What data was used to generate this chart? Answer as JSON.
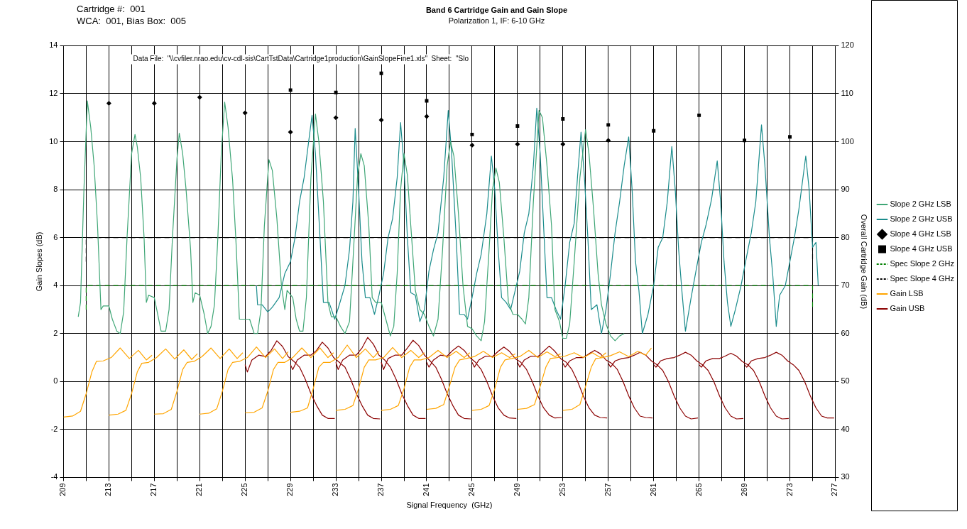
{
  "chart_data": {
    "type": "line",
    "title": "Band 6 Cartridge Gain and Gain Slope",
    "subtitle": "Polarization 1, IF: 6-10 GHz",
    "xlabel": "Signal Frequency  (GHz)",
    "ylabel": "Gain Slopes (dB)",
    "y2label": "Overall Cartridge Gain (dB)",
    "annotations": [
      "Cartridge #:  001",
      "WCA:  001, Bias Box:  005",
      "Data File:  \"\\\\cvfiler.nrao.edu\\cv-cdl-sis\\CartTstData\\Cartridge1production\\GainSlopeFine1.xls\"  Sheet:  \"Slo"
    ],
    "xlim": [
      209,
      277
    ],
    "xticks": [
      209,
      {
        "value": 211,
        "label": null
      },
      213,
      {
        "value": 215,
        "label": null
      },
      217,
      {
        "value": 219,
        "label": null
      },
      221,
      {
        "value": 223,
        "label": null
      },
      225,
      {
        "value": 227,
        "label": null
      },
      229,
      {
        "value": 231,
        "label": null
      },
      233,
      {
        "value": 235,
        "label": null
      },
      237,
      {
        "value": 239,
        "label": null
      },
      241,
      {
        "value": 243,
        "label": null
      },
      245,
      {
        "value": 247,
        "label": null
      },
      249,
      {
        "value": 251,
        "label": null
      },
      253,
      {
        "value": 255,
        "label": null
      },
      257,
      {
        "value": 259,
        "label": null
      },
      261,
      {
        "value": 263,
        "label": null
      },
      265,
      {
        "value": 267,
        "label": null
      },
      269,
      {
        "value": 271,
        "label": null
      },
      273,
      {
        "value": 275,
        "label": null
      },
      277
    ],
    "ylim": [
      -4,
      14
    ],
    "yticks": [
      -4,
      -2,
      0,
      2,
      4,
      6,
      8,
      10,
      12,
      14
    ],
    "y2lim": [
      30,
      120
    ],
    "y2ticks": [
      30,
      40,
      50,
      60,
      70,
      80,
      90,
      100,
      110,
      120
    ],
    "grid": true,
    "legend": "right",
    "series": [
      {
        "name": "Slope 2 GHz LSB",
        "type": "line",
        "color": "#3fa676",
        "x": [
          210.3,
          210.5,
          210.8,
          211.1,
          211.4,
          211.7,
          212.0,
          212.3,
          212.5,
          213.0,
          213.3,
          213.7,
          214.0,
          214.3,
          214.6,
          215.0,
          215.3,
          215.5,
          215.8,
          216.1,
          216.3,
          216.5,
          217.0,
          217.3,
          217.6,
          218.0,
          218.3,
          218.6,
          219.0,
          219.2,
          219.5,
          219.8,
          220.2,
          220.4,
          220.6,
          221.0,
          221.4,
          221.7,
          222.0,
          222.3,
          222.6,
          222.9,
          223.2,
          223.5,
          223.9,
          224.2,
          224.5,
          225.0,
          225.4,
          225.8,
          226.1,
          226.4,
          226.7,
          227.1,
          227.4,
          227.8,
          228.2,
          228.5,
          228.7,
          229.2,
          229.5,
          229.8,
          230.1,
          230.4,
          230.8,
          231.2,
          231.5,
          231.9,
          232.3,
          232.6,
          233.0,
          233.4,
          233.8,
          234.2,
          234.5,
          234.9,
          235.2,
          235.5,
          235.9,
          236.2,
          236.5,
          237.0,
          237.4,
          237.8,
          238.1,
          238.4,
          238.7,
          239.0,
          239.3,
          239.6,
          240.0,
          240.4,
          240.8,
          241.2,
          241.6,
          242.0,
          242.4,
          242.8,
          243.1,
          243.4,
          243.8,
          244.2,
          244.6,
          245.0,
          245.4,
          245.8,
          246.1,
          246.5,
          246.8,
          247.1,
          247.4,
          247.8,
          248.2,
          248.6,
          249.0,
          249.4,
          249.7,
          250.0,
          250.4,
          250.9,
          251.2,
          251.6,
          252.0,
          252.3,
          252.7,
          253.0,
          253.3,
          253.6,
          254.0,
          254.5,
          255.0,
          255.3,
          255.7,
          256.1,
          256.4,
          256.8,
          257.2,
          257.6,
          258.0,
          258.4
        ],
        "values": [
          2.7,
          3.3,
          8.0,
          11.7,
          10.6,
          9.0,
          6.5,
          3.0,
          3.15,
          3.15,
          2.6,
          2.1,
          2.0,
          2.9,
          6.0,
          9.5,
          10.3,
          9.8,
          8.5,
          6.0,
          3.3,
          3.6,
          3.5,
          2.8,
          2.1,
          2.1,
          3.0,
          6.0,
          9.3,
          10.35,
          9.5,
          8.0,
          5.5,
          3.3,
          3.7,
          3.6,
          2.8,
          2.0,
          2.3,
          3.2,
          6.0,
          9.5,
          11.65,
          10.6,
          8.4,
          5.8,
          2.6,
          2.6,
          2.6,
          2.0,
          2.0,
          3.0,
          6.5,
          9.25,
          8.8,
          6.8,
          4.0,
          3.0,
          3.8,
          3.5,
          2.6,
          2.1,
          2.1,
          3.5,
          8.5,
          11.15,
          10.0,
          7.5,
          3.3,
          2.7,
          2.7,
          2.3,
          2.0,
          2.5,
          5.0,
          8.5,
          9.5,
          9.0,
          6.5,
          3.5,
          3.3,
          3.3,
          2.6,
          1.9,
          2.3,
          4.5,
          8.0,
          9.5,
          8.6,
          6.5,
          3.8,
          3.0,
          2.8,
          2.3,
          1.9,
          2.6,
          5.5,
          9.0,
          10.0,
          9.4,
          7.0,
          4.0,
          2.3,
          2.2,
          1.9,
          1.7,
          2.5,
          5.5,
          8.0,
          8.9,
          8.3,
          6.0,
          3.3,
          2.8,
          2.8,
          2.6,
          2.4,
          3.5,
          7.5,
          11.3,
          11.0,
          9.0,
          6.5,
          3.0,
          2.5,
          1.8,
          1.8,
          2.4,
          5.0,
          8.5,
          10.5,
          9.5,
          7.2,
          4.5,
          3.2,
          2.4,
          1.9,
          1.7,
          1.9,
          2.0
        ]
      },
      {
        "name": "Slope 2 GHz USB",
        "type": "line",
        "color": "#1b8c8c",
        "x": [
          226.0,
          226.1,
          226.5,
          227.0,
          227.4,
          228.0,
          228.5,
          229.0,
          229.4,
          229.8,
          230.2,
          230.6,
          230.9,
          231.2,
          231.6,
          231.9,
          232.4,
          232.9,
          233.3,
          233.8,
          234.2,
          234.5,
          234.7,
          235.0,
          235.3,
          235.6,
          236.0,
          236.4,
          236.8,
          237.2,
          237.6,
          238.0,
          238.4,
          238.7,
          239.0,
          239.3,
          239.6,
          240.0,
          240.4,
          240.8,
          241.2,
          241.6,
          242.0,
          242.5,
          242.9,
          243.2,
          243.6,
          243.9,
          244.3,
          244.6,
          245.0,
          245.4,
          245.8,
          246.3,
          246.7,
          247.0,
          247.3,
          247.6,
          248.0,
          248.4,
          248.8,
          249.2,
          249.6,
          250.0,
          250.4,
          250.7,
          251.0,
          251.3,
          251.6,
          252.0,
          252.4,
          252.8,
          253.2,
          253.6,
          254.0,
          254.3,
          254.6,
          254.9,
          255.2,
          255.5,
          256.0,
          256.4,
          256.8,
          257.2,
          257.6,
          258.0,
          258.4,
          258.8,
          259.1,
          259.4,
          259.7,
          260.0,
          260.5,
          261.0,
          261.4,
          261.8,
          262.2,
          262.6,
          262.9,
          263.2,
          263.5,
          263.8,
          264.3,
          264.8,
          265.2,
          265.6,
          266.1,
          266.6,
          266.9,
          267.2,
          267.5,
          267.8,
          268.2,
          268.7,
          269.1,
          269.6,
          270.0,
          270.5,
          270.8,
          271.2,
          271.5,
          271.8,
          272.1,
          272.6,
          273.0,
          273.4,
          273.8,
          274.4,
          274.7,
          275.0,
          275.3,
          275.5
        ],
        "values": [
          4.0,
          3.2,
          3.2,
          2.9,
          3.1,
          3.5,
          4.5,
          5.0,
          6.0,
          7.5,
          8.5,
          10.0,
          11.1,
          9.5,
          6.0,
          3.3,
          3.3,
          2.6,
          3.2,
          4.0,
          5.5,
          7.5,
          10.55,
          8.0,
          5.0,
          3.5,
          3.5,
          2.8,
          3.6,
          4.5,
          6.0,
          6.8,
          8.5,
          10.8,
          9.0,
          6.0,
          3.7,
          3.6,
          2.5,
          3.0,
          4.6,
          5.5,
          6.2,
          8.5,
          11.3,
          9.5,
          6.0,
          2.8,
          2.8,
          2.6,
          3.5,
          4.5,
          5.3,
          7.0,
          9.4,
          8.0,
          5.5,
          3.5,
          3.3,
          3.0,
          3.8,
          4.6,
          6.2,
          7.0,
          9.0,
          11.4,
          9.5,
          6.5,
          3.5,
          3.5,
          3.0,
          2.6,
          4.0,
          5.8,
          6.6,
          8.6,
          10.4,
          8.5,
          6.0,
          3.0,
          3.2,
          2.0,
          3.0,
          4.5,
          6.2,
          7.5,
          9.0,
          10.2,
          8.0,
          5.0,
          3.8,
          2.0,
          2.8,
          4.0,
          5.6,
          6.0,
          7.5,
          9.8,
          8.0,
          5.5,
          3.7,
          2.1,
          3.5,
          4.8,
          5.8,
          6.5,
          7.6,
          9.2,
          7.5,
          5.0,
          3.3,
          2.3,
          3.0,
          4.0,
          5.0,
          6.2,
          7.5,
          10.7,
          9.0,
          6.0,
          4.4,
          2.3,
          3.6,
          4.0,
          5.0,
          6.0,
          7.2,
          9.4,
          8.0,
          5.6,
          5.8,
          4.0
        ]
      },
      {
        "name": "Slope 4 GHz LSB",
        "type": "scatter",
        "marker": "diamond",
        "color": "#000000",
        "x": [
          213,
          217,
          221,
          225,
          229,
          233,
          237,
          241,
          245,
          249,
          253,
          257
        ],
        "values": [
          11.6,
          11.6,
          11.85,
          11.2,
          10.4,
          11.0,
          10.9,
          11.05,
          9.85,
          9.9,
          9.9,
          10.05
        ]
      },
      {
        "name": "Slope 4 GHz USB",
        "type": "scatter",
        "marker": "square",
        "color": "#000000",
        "x": [
          229,
          233,
          237,
          241,
          245,
          249,
          253,
          257,
          261,
          265,
          269,
          273
        ],
        "values": [
          12.15,
          12.05,
          12.85,
          11.7,
          10.3,
          10.65,
          10.95,
          10.7,
          10.45,
          11.1,
          10.05,
          10.2
        ]
      },
      {
        "name": "Spec Slope 2 GHz",
        "type": "line",
        "line_style": "dashed",
        "color": "#008000",
        "x": [
          211,
          211,
          275,
          275
        ],
        "values": [
          3,
          4,
          4,
          3
        ]
      },
      {
        "name": "Spec Slope 4 GHz",
        "type": "line",
        "line_style": "dashed",
        "color": "#000000",
        "x": [
          211,
          211,
          275,
          275
        ],
        "values": [
          5,
          6,
          6,
          5
        ]
      },
      {
        "name": "Gain LSB",
        "type": "line",
        "axis": "y2",
        "color": "#ffa500",
        "x": [
          209,
          209.8,
          210.5,
          211,
          211.5,
          211.9,
          212.5,
          213.2,
          214,
          214.8,
          215.6,
          216.3,
          216.8,
          null,
          213,
          213.8,
          214.5,
          215,
          215.5,
          215.9,
          216.5,
          217.2,
          218,
          218.8,
          219.6,
          220.3,
          220.8,
          null,
          217,
          217.8,
          218.5,
          219,
          219.5,
          219.9,
          220.5,
          221.2,
          222,
          222.8,
          223.6,
          224.3,
          224.8,
          null,
          221,
          221.8,
          222.5,
          223,
          223.5,
          223.9,
          224.5,
          225.2,
          226,
          226.8,
          227.6,
          228.3,
          228.8,
          null,
          225,
          225.8,
          226.5,
          227,
          227.5,
          227.9,
          228.5,
          229.2,
          230,
          230.8,
          231.6,
          232.3,
          232.8,
          null,
          229,
          229.8,
          230.5,
          231,
          231.5,
          231.9,
          232.5,
          233.2,
          234,
          234.8,
          235.6,
          236.3,
          236.8,
          null,
          233,
          233.8,
          234.5,
          235,
          235.5,
          235.9,
          236.5,
          237.2,
          238,
          238.8,
          239.6,
          240.3,
          240.8,
          null,
          237,
          237.8,
          238.5,
          239,
          239.5,
          239.9,
          240.5,
          241.2,
          242,
          242.8,
          243.6,
          244.3,
          244.8,
          null,
          241,
          241.8,
          242.5,
          243,
          243.5,
          243.9,
          244.5,
          245.2,
          246,
          246.8,
          247.6,
          248.3,
          248.8,
          null,
          245,
          245.8,
          246.5,
          247,
          247.5,
          247.9,
          248.5,
          249.2,
          250,
          250.8,
          251.6,
          252.3,
          252.8,
          null,
          249,
          249.8,
          250.5,
          251,
          251.5,
          251.9,
          252.5,
          253.2,
          254,
          254.8,
          255.6,
          256.3,
          256.8,
          null,
          253,
          253.8,
          254.5,
          255,
          255.5,
          255.9,
          256.5,
          257.2,
          258,
          258.8,
          259.6,
          260.3,
          260.8
        ],
        "values": [
          42.6,
          42.8,
          43.8,
          47.5,
          52.0,
          54.2,
          54.3,
          55.0,
          57.0,
          54.8,
          56.5,
          54.5,
          55.5,
          null,
          43.0,
          43.2,
          44.0,
          47.5,
          52.0,
          53.8,
          54.0,
          55.0,
          56.8,
          54.7,
          56.6,
          54.6,
          55.8,
          null,
          43.2,
          43.3,
          44.2,
          48.0,
          52.5,
          54.0,
          54.2,
          55.2,
          57.0,
          54.8,
          56.8,
          54.8,
          56.0,
          null,
          43.2,
          43.4,
          44.3,
          48.0,
          52.5,
          54.0,
          54.2,
          55.0,
          57.2,
          55.0,
          56.8,
          54.8,
          56.2,
          null,
          43.5,
          43.6,
          44.5,
          48.0,
          52.5,
          54.0,
          54.0,
          55.0,
          57.0,
          55.0,
          57.0,
          55.0,
          56.0,
          null,
          43.6,
          43.8,
          44.5,
          48.5,
          53.0,
          54.0,
          54.0,
          55.0,
          57.6,
          55.0,
          56.8,
          55.0,
          56.3,
          null,
          44.0,
          44.2,
          45.0,
          48.5,
          53.0,
          54.5,
          54.5,
          55.0,
          57.1,
          55.0,
          56.5,
          55.0,
          56.0,
          null,
          44.0,
          44.2,
          45.0,
          48.5,
          53.0,
          54.5,
          54.5,
          55.0,
          56.5,
          55.0,
          56.3,
          55.0,
          56.0,
          null,
          44.2,
          44.4,
          45.2,
          49.0,
          53.0,
          54.5,
          54.8,
          55.2,
          56.3,
          55.0,
          56.0,
          55.0,
          55.8,
          null,
          44.0,
          44.2,
          45.0,
          48.5,
          53.0,
          54.5,
          54.8,
          55.2,
          56.5,
          55.0,
          56.2,
          55.2,
          55.8,
          null,
          44.2,
          44.4,
          45.2,
          49.0,
          53.0,
          54.8,
          55.0,
          55.3,
          56.0,
          55.0,
          56.0,
          55.0,
          56.0,
          null,
          44.0,
          44.2,
          45.2,
          49.0,
          53.0,
          54.8,
          55.0,
          55.4,
          56.2,
          55.2,
          56.3,
          55.5,
          57.0
        ]
      },
      {
        "name": "Gain USB",
        "type": "line",
        "axis": "y2",
        "color": "#8b0000",
        "x": [
          225,
          225.2,
          225.6,
          226.2,
          226.8,
          227.3,
          227.8,
          228.3,
          228.8,
          229.3,
          229.8,
          230.3,
          230.8,
          231.3,
          231.8,
          232.3,
          232.9,
          null,
          229,
          229.2,
          229.6,
          230.2,
          230.8,
          231.3,
          231.8,
          232.3,
          232.8,
          233.3,
          233.8,
          234.3,
          234.8,
          235.3,
          235.8,
          236.3,
          236.9,
          null,
          233,
          233.2,
          233.6,
          234.2,
          234.8,
          235.3,
          235.8,
          236.3,
          236.8,
          237.3,
          237.8,
          238.3,
          238.8,
          239.3,
          239.8,
          240.3,
          240.9,
          null,
          237,
          237.2,
          237.6,
          238.2,
          238.8,
          239.3,
          239.8,
          240.3,
          240.8,
          241.3,
          241.8,
          242.3,
          242.8,
          243.3,
          243.8,
          244.3,
          244.9,
          null,
          241,
          241.2,
          241.6,
          242.2,
          242.8,
          243.3,
          243.8,
          244.3,
          244.8,
          245.3,
          245.8,
          246.3,
          246.8,
          247.3,
          247.8,
          248.3,
          248.9,
          null,
          245,
          245.2,
          245.6,
          246.2,
          246.8,
          247.3,
          247.8,
          248.3,
          248.8,
          249.3,
          249.8,
          250.3,
          250.8,
          251.3,
          251.8,
          252.3,
          252.9,
          null,
          249,
          249.2,
          249.6,
          250.2,
          250.8,
          251.3,
          251.8,
          252.3,
          252.8,
          253.3,
          253.8,
          254.3,
          254.8,
          255.3,
          255.8,
          256.3,
          256.9,
          null,
          253,
          253.2,
          253.6,
          254.2,
          254.8,
          255.3,
          255.8,
          256.3,
          256.8,
          257.3,
          257.8,
          258.3,
          258.8,
          259.3,
          259.8,
          260.3,
          260.9,
          null,
          257,
          257.2,
          257.6,
          258.2,
          258.8,
          259.3,
          259.8,
          260.3,
          260.8,
          261.3,
          261.8,
          262.3,
          262.8,
          263.3,
          263.8,
          264.3,
          264.9,
          null,
          261,
          261.2,
          261.6,
          262.2,
          262.8,
          263.3,
          263.8,
          264.3,
          264.8,
          265.3,
          265.8,
          266.3,
          266.8,
          267.3,
          267.8,
          268.3,
          268.9,
          null,
          265,
          265.2,
          265.6,
          266.2,
          266.8,
          267.3,
          267.8,
          268.3,
          268.8,
          269.3,
          269.8,
          270.3,
          270.8,
          271.3,
          271.8,
          272.3,
          272.9,
          null,
          269,
          269.2,
          269.6,
          270.2,
          270.8,
          271.3,
          271.8,
          272.3,
          272.8,
          273.3,
          273.8,
          274.3,
          274.8,
          275.3,
          275.8,
          276.3,
          276.9
        ],
        "values": [
          53.5,
          52.0,
          54.5,
          55.5,
          55.2,
          56.5,
          58.5,
          57.3,
          55.2,
          54.2,
          53.0,
          50.5,
          47.5,
          45.0,
          43.0,
          42.3,
          42.3,
          null,
          53.5,
          52.5,
          54.5,
          55.5,
          55.5,
          56.5,
          58.2,
          57.0,
          55.0,
          54.0,
          53.0,
          50.5,
          47.5,
          45.0,
          43.0,
          42.3,
          42.2,
          null,
          54.0,
          52.5,
          54.5,
          55.5,
          55.5,
          57.0,
          59.2,
          57.8,
          55.5,
          54.5,
          53.0,
          50.5,
          47.5,
          45.0,
          43.0,
          42.3,
          42.3,
          null,
          54.0,
          52.5,
          54.8,
          55.5,
          55.5,
          57.0,
          58.6,
          57.5,
          55.5,
          54.3,
          53.0,
          50.5,
          47.5,
          45.0,
          43.0,
          42.3,
          42.2,
          null,
          54.0,
          53.0,
          54.5,
          55.5,
          55.3,
          56.5,
          57.4,
          56.5,
          55.0,
          54.0,
          52.5,
          50.0,
          47.0,
          44.5,
          43.0,
          42.4,
          42.3,
          null,
          54.0,
          53.0,
          54.5,
          55.3,
          55.2,
          56.3,
          57.2,
          56.3,
          54.8,
          54.0,
          52.5,
          50.0,
          47.0,
          44.5,
          43.0,
          42.4,
          42.5,
          null,
          54.0,
          53.0,
          54.5,
          55.3,
          55.2,
          56.3,
          57.4,
          56.3,
          54.8,
          54.0,
          52.5,
          50.0,
          47.0,
          44.5,
          43.0,
          42.5,
          42.4,
          null,
          53.8,
          53.0,
          54.3,
          55.0,
          55.0,
          55.8,
          56.5,
          55.8,
          54.5,
          53.8,
          52.5,
          50.0,
          47.0,
          44.5,
          42.8,
          42.5,
          42.4,
          null,
          53.8,
          53.0,
          54.3,
          54.8,
          55.0,
          55.5,
          56.1,
          55.5,
          54.3,
          53.5,
          52.3,
          50.0,
          47.0,
          44.5,
          42.8,
          42.2,
          42.4,
          null,
          53.5,
          53.0,
          54.3,
          54.8,
          55.0,
          55.5,
          56.1,
          55.5,
          54.3,
          53.5,
          52.3,
          50.0,
          47.0,
          44.5,
          42.8,
          42.2,
          42.3,
          null,
          53.5,
          53.0,
          54.3,
          54.8,
          54.8,
          55.3,
          55.9,
          55.3,
          54.2,
          53.5,
          52.3,
          50.0,
          47.0,
          44.5,
          42.8,
          42.2,
          42.3,
          null,
          53.5,
          53.0,
          54.3,
          54.8,
          55.0,
          55.5,
          56.1,
          55.5,
          54.3,
          53.5,
          52.3,
          50.0,
          47.0,
          44.5,
          42.8,
          42.4,
          42.4
        ]
      }
    ]
  }
}
